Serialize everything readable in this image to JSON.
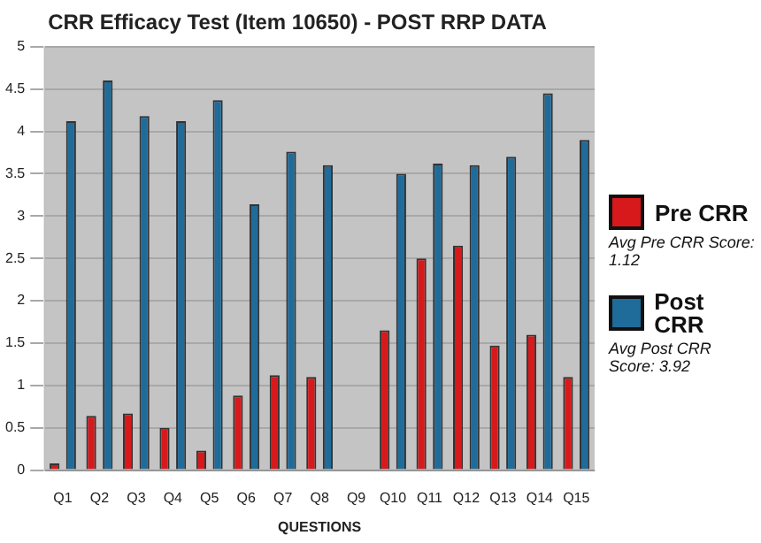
{
  "chart_data": {
    "type": "bar",
    "title": "CRR Efficacy Test (Item 10650) - POST RRP DATA",
    "xlabel": "QUESTIONS",
    "categories": [
      "Q1",
      "Q2",
      "Q3",
      "Q4",
      "Q5",
      "Q6",
      "Q7",
      "Q8",
      "Q9",
      "Q10",
      "Q11",
      "Q12",
      "Q13",
      "Q14",
      "Q15"
    ],
    "series": [
      {
        "name": "Pre CRR",
        "color": "#d7191c",
        "values": [
          0.08,
          0.64,
          0.67,
          0.5,
          0.23,
          0.88,
          1.12,
          1.1,
          null,
          1.65,
          2.5,
          2.65,
          1.47,
          1.6,
          1.1
        ]
      },
      {
        "name": "Post CRR",
        "color": "#1f6b9a",
        "values": [
          4.12,
          4.6,
          4.18,
          4.12,
          4.37,
          3.14,
          3.76,
          3.6,
          null,
          3.5,
          3.62,
          3.6,
          3.7,
          4.45,
          3.9
        ]
      }
    ],
    "annotations": [
      "Avg Pre CRR Score: 1.12",
      "Avg Post CRR Score: 3.92"
    ],
    "ylim": [
      0,
      5
    ],
    "yticks": [
      0,
      0.5,
      1,
      1.5,
      2,
      2.5,
      3,
      3.5,
      4,
      4.5,
      5
    ],
    "grid": "y",
    "legend": "right"
  }
}
